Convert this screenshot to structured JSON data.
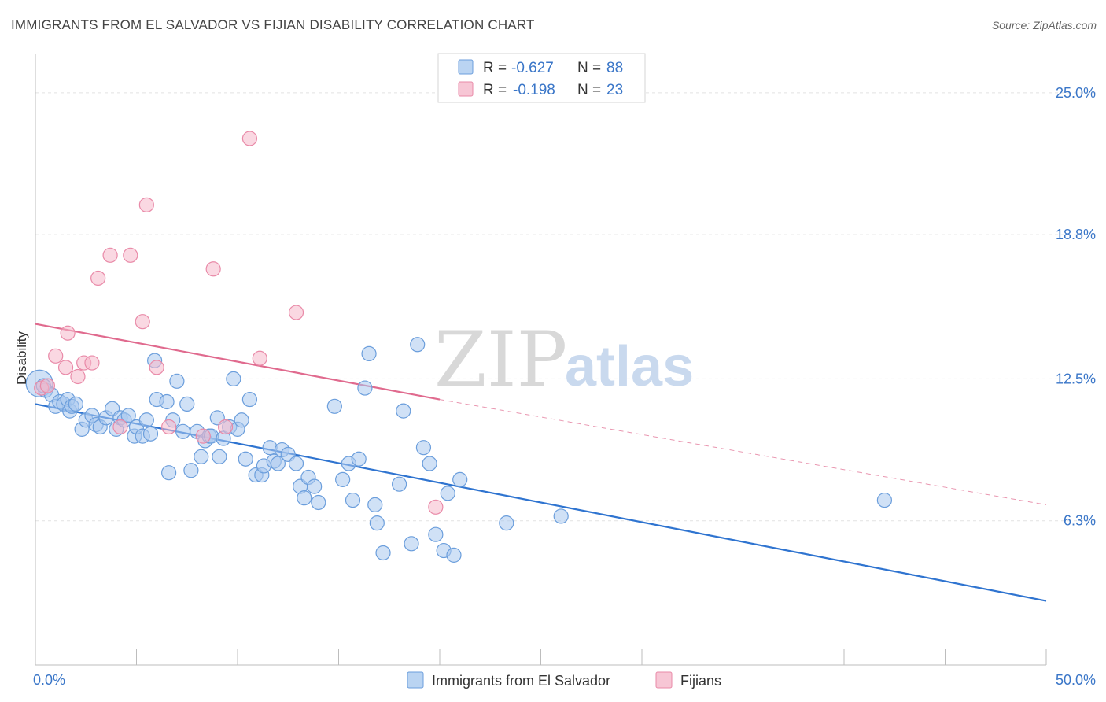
{
  "header": {
    "title": "IMMIGRANTS FROM EL SALVADOR VS FIJIAN DISABILITY CORRELATION CHART",
    "source": "Source: ZipAtlas.com"
  },
  "watermark": {
    "part1": "ZIP",
    "part2": "atlas"
  },
  "legend": {
    "r_label": "R =",
    "n_label": "N =",
    "series": [
      {
        "r": "-0.627",
        "n": "88"
      },
      {
        "r": "-0.198",
        "n": "23"
      }
    ]
  },
  "bottom_legend": [
    "Immigrants from El Salvador",
    "Fijians"
  ],
  "colors": {
    "blue_fill": "#a9c9ef",
    "blue_stroke": "#6b9edc",
    "blue_line": "#2f74d0",
    "pink_fill": "#f5b8cb",
    "pink_stroke": "#e98aa8",
    "pink_line": "#e06a8e",
    "grid": "#e2e2e2",
    "tick_label": "#3a76c8"
  },
  "chart_data": {
    "type": "scatter",
    "title": "IMMIGRANTS FROM EL SALVADOR VS FIJIAN DISABILITY CORRELATION CHART",
    "xlabel": "",
    "ylabel": "Disability",
    "xlim": [
      0,
      50
    ],
    "ylim": [
      0,
      26.3
    ],
    "x_tick_labels": [
      "0.0%",
      "50.0%"
    ],
    "y_ticks": [
      6.3,
      12.5,
      18.8,
      25.0
    ],
    "y_tick_labels": [
      "6.3%",
      "12.5%",
      "18.8%",
      "25.0%"
    ],
    "grid": true,
    "legend_position": "top-center",
    "series": [
      {
        "name": "Immigrants from El Salvador",
        "trend": {
          "x": [
            0,
            50
          ],
          "y": [
            11.4,
            2.8
          ]
        },
        "points": [
          [
            0.2,
            12.3
          ],
          [
            0.5,
            12.0
          ],
          [
            0.8,
            11.8
          ],
          [
            1.0,
            11.3
          ],
          [
            1.2,
            11.5
          ],
          [
            1.4,
            11.4
          ],
          [
            1.6,
            11.6
          ],
          [
            1.7,
            11.1
          ],
          [
            1.8,
            11.3
          ],
          [
            2.0,
            11.4
          ],
          [
            2.3,
            10.3
          ],
          [
            2.5,
            10.7
          ],
          [
            2.8,
            10.9
          ],
          [
            3.0,
            10.5
          ],
          [
            3.2,
            10.4
          ],
          [
            3.5,
            10.8
          ],
          [
            3.8,
            11.2
          ],
          [
            4.0,
            10.3
          ],
          [
            4.2,
            10.8
          ],
          [
            4.4,
            10.7
          ],
          [
            4.6,
            10.9
          ],
          [
            4.9,
            10.0
          ],
          [
            5.0,
            10.4
          ],
          [
            5.3,
            10.0
          ],
          [
            5.5,
            10.7
          ],
          [
            5.7,
            10.1
          ],
          [
            5.9,
            13.3
          ],
          [
            6.0,
            11.6
          ],
          [
            6.5,
            11.5
          ],
          [
            6.6,
            8.4
          ],
          [
            6.8,
            10.7
          ],
          [
            7.0,
            12.4
          ],
          [
            7.3,
            10.2
          ],
          [
            7.5,
            11.4
          ],
          [
            7.7,
            8.5
          ],
          [
            8.0,
            10.2
          ],
          [
            8.2,
            9.1
          ],
          [
            8.4,
            9.8
          ],
          [
            8.6,
            10.0
          ],
          [
            8.7,
            10.0
          ],
          [
            9.0,
            10.8
          ],
          [
            9.1,
            9.1
          ],
          [
            9.3,
            9.9
          ],
          [
            9.6,
            10.4
          ],
          [
            9.8,
            12.5
          ],
          [
            10.0,
            10.3
          ],
          [
            10.2,
            10.7
          ],
          [
            10.4,
            9.0
          ],
          [
            10.6,
            11.6
          ],
          [
            10.9,
            8.3
          ],
          [
            11.2,
            8.3
          ],
          [
            11.3,
            8.7
          ],
          [
            11.6,
            9.5
          ],
          [
            11.8,
            8.9
          ],
          [
            12.0,
            8.8
          ],
          [
            12.2,
            9.4
          ],
          [
            12.5,
            9.2
          ],
          [
            12.9,
            8.8
          ],
          [
            13.1,
            7.8
          ],
          [
            13.3,
            7.3
          ],
          [
            13.5,
            8.2
          ],
          [
            13.8,
            7.8
          ],
          [
            14.0,
            7.1
          ],
          [
            14.8,
            11.3
          ],
          [
            15.2,
            8.1
          ],
          [
            15.5,
            8.8
          ],
          [
            15.7,
            7.2
          ],
          [
            16.0,
            9.0
          ],
          [
            16.3,
            12.1
          ],
          [
            16.5,
            13.6
          ],
          [
            16.8,
            7.0
          ],
          [
            16.9,
            6.2
          ],
          [
            17.2,
            4.9
          ],
          [
            18.0,
            7.9
          ],
          [
            18.2,
            11.1
          ],
          [
            18.6,
            5.3
          ],
          [
            18.9,
            14.0
          ],
          [
            19.2,
            9.5
          ],
          [
            19.5,
            8.8
          ],
          [
            19.8,
            5.7
          ],
          [
            20.2,
            5.0
          ],
          [
            20.4,
            7.5
          ],
          [
            20.7,
            4.8
          ],
          [
            21.0,
            8.1
          ],
          [
            23.3,
            6.2
          ],
          [
            26.0,
            6.5
          ],
          [
            42.0,
            7.2
          ],
          [
            0.4,
            12.2
          ]
        ]
      },
      {
        "name": "Fijians",
        "trend": {
          "x": [
            0,
            20
          ],
          "y": [
            14.9,
            11.6
          ]
        },
        "trend_extended": {
          "x": [
            20,
            50
          ],
          "y": [
            11.6,
            7.0
          ]
        },
        "points": [
          [
            0.3,
            12.1
          ],
          [
            0.6,
            12.2
          ],
          [
            1.0,
            13.5
          ],
          [
            1.5,
            13.0
          ],
          [
            1.6,
            14.5
          ],
          [
            2.1,
            12.6
          ],
          [
            2.4,
            13.2
          ],
          [
            2.8,
            13.2
          ],
          [
            3.1,
            16.9
          ],
          [
            3.7,
            17.9
          ],
          [
            4.2,
            10.4
          ],
          [
            4.7,
            17.9
          ],
          [
            5.3,
            15.0
          ],
          [
            5.5,
            20.1
          ],
          [
            6.0,
            13.0
          ],
          [
            6.6,
            10.4
          ],
          [
            8.3,
            10.0
          ],
          [
            8.8,
            17.3
          ],
          [
            9.4,
            10.4
          ],
          [
            10.6,
            23.0
          ],
          [
            11.1,
            13.4
          ],
          [
            12.9,
            15.4
          ],
          [
            19.8,
            6.9
          ]
        ]
      }
    ]
  }
}
